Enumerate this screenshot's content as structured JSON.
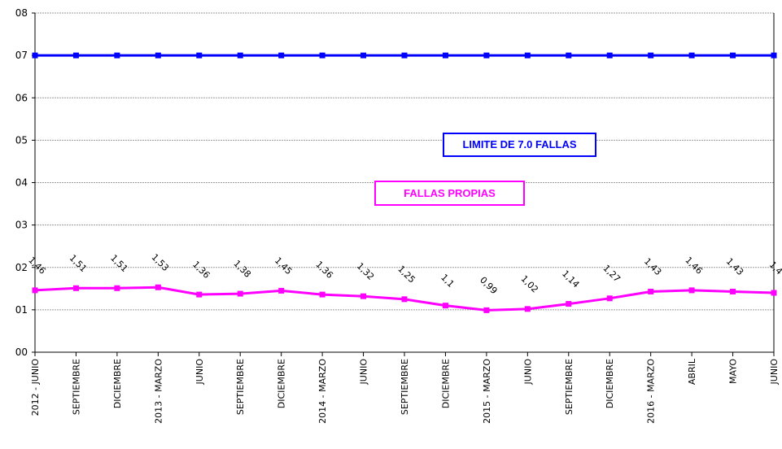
{
  "chart_data": {
    "type": "line",
    "categories": [
      "2012 - JUNIO",
      "SEPTIEMBRE",
      "DICIEMBRE",
      "2013 - MARZO",
      "JUNIO",
      "SEPTIEMBRE",
      "DICIEMBRE",
      "2014 - MARZO",
      "JUNIO",
      "SEPTIEMBRE",
      "DICIEMBRE",
      "2015 - MARZO",
      "JUNIO",
      "SEPTIEMBRE",
      "DICIEMBRE",
      "2016 - MARZO",
      "ABRIL",
      "MAYO",
      "JUNIO"
    ],
    "y_tick_labels": [
      "00",
      "01",
      "02",
      "03",
      "04",
      "05",
      "06",
      "07",
      "08"
    ],
    "ylim": [
      0,
      8
    ],
    "grid": true,
    "series": [
      {
        "name": "LIMITE DE 7.0 FALLAS",
        "color": "#0000ff",
        "values": [
          7,
          7,
          7,
          7,
          7,
          7,
          7,
          7,
          7,
          7,
          7,
          7,
          7,
          7,
          7,
          7,
          7,
          7,
          7
        ]
      },
      {
        "name": "FALLAS PROPIAS",
        "color": "#ff00ff",
        "values": [
          1.46,
          1.51,
          1.51,
          1.53,
          1.36,
          1.38,
          1.45,
          1.36,
          1.32,
          1.25,
          1.1,
          0.99,
          1.02,
          1.14,
          1.27,
          1.43,
          1.46,
          1.43,
          1.4
        ],
        "data_labels": [
          "1,46",
          "1,51",
          "1,51",
          "1,53",
          "1,36",
          "1,38",
          "1,45",
          "1,36",
          "1,32",
          "1,25",
          "1,1",
          "0,99",
          "1,02",
          "1,14",
          "1,27",
          "1,43",
          "1,46",
          "1,43",
          "1,4"
        ]
      }
    ]
  },
  "legend": {
    "limit_label": "LIMITE DE 7.0 FALLAS",
    "own_label": "FALLAS PROPIAS"
  }
}
